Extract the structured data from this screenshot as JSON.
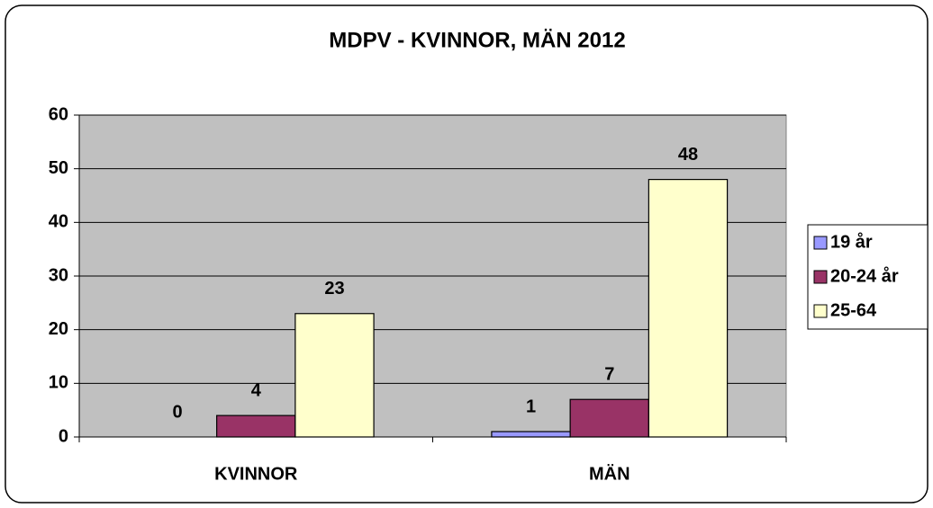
{
  "chart_data": {
    "type": "bar",
    "title": "MDPV - KVINNOR, MÄN 2012",
    "categories": [
      "KVINNOR",
      "MÄN"
    ],
    "series": [
      {
        "name": "19 år",
        "color": "#9999ff",
        "values": [
          0,
          1
        ]
      },
      {
        "name": "20-24 år",
        "color": "#993366",
        "values": [
          4,
          7
        ]
      },
      {
        "name": "25-64",
        "color": "#ffffcc",
        "values": [
          23,
          48
        ]
      }
    ],
    "ylim": [
      0,
      60
    ],
    "yticks": [
      0,
      10,
      20,
      30,
      40,
      50,
      60
    ],
    "grid": true,
    "legend": "right"
  }
}
